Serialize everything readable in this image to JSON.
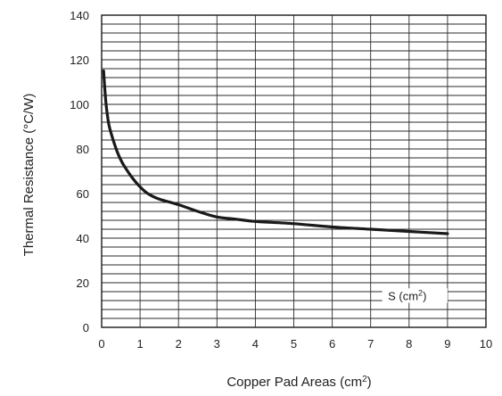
{
  "chart_data": {
    "type": "line",
    "xlabel": {
      "main": "Copper Pad Areas (cm",
      "sup": "2",
      "tail": ")"
    },
    "ylabel": "Thermal Resistance (°C/W)",
    "xlim": [
      0,
      10
    ],
    "ylim": [
      0,
      140
    ],
    "xticks": [
      "0",
      "1",
      "2",
      "3",
      "4",
      "5",
      "6",
      "7",
      "8",
      "9",
      "10"
    ],
    "yticks": [
      "0",
      "20",
      "40",
      "60",
      "80",
      "100",
      "120",
      "140"
    ],
    "grid": true,
    "minor_grid_step_y": 4,
    "series": [
      {
        "color": "#1a1a1a",
        "x": [
          0.05,
          0.1,
          0.15,
          0.2,
          0.3,
          0.4,
          0.5,
          0.6,
          0.8,
          1.0,
          1.2,
          1.5,
          2.0,
          2.5,
          3.0,
          3.5,
          4.0,
          5.0,
          6.0,
          7.0,
          8.0,
          9.0
        ],
        "y": [
          115,
          103,
          95,
          90,
          84,
          79,
          75,
          72,
          67,
          63,
          60,
          57.5,
          55,
          52,
          49.5,
          48.5,
          47.5,
          46.5,
          45,
          44,
          43,
          42
        ]
      }
    ],
    "annotation": {
      "main": "S (cm",
      "sup": "2",
      "tail": ")"
    }
  }
}
